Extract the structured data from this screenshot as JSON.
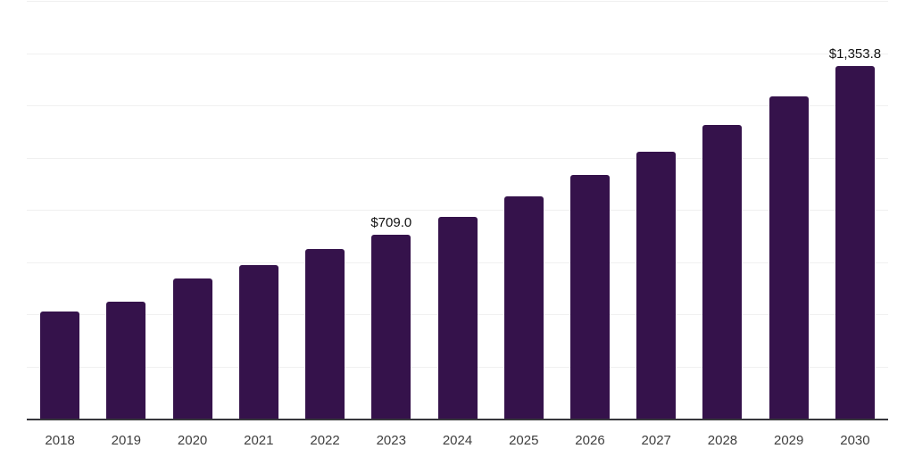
{
  "chart_data": {
    "type": "bar",
    "title": "",
    "xlabel": "",
    "ylabel": "",
    "categories": [
      "2018",
      "2019",
      "2020",
      "2021",
      "2022",
      "2023",
      "2024",
      "2025",
      "2026",
      "2027",
      "2028",
      "2029",
      "2030"
    ],
    "values": [
      413,
      452,
      539,
      592,
      652,
      709.0,
      777,
      854,
      937,
      1026,
      1127,
      1237,
      1353.8
    ],
    "bar_labels": [
      "",
      "",
      "",
      "",
      "",
      "$709.0",
      "",
      "",
      "",
      "",
      "",
      "",
      "$1,353.8"
    ],
    "ylim": [
      0,
      1600
    ],
    "gridline_step": 200,
    "grid": true,
    "legend": false,
    "y_tick_labels_visible": false
  },
  "colors": {
    "bar": "#35124B",
    "axis": "#37373C",
    "gridline": "#F0F0F0",
    "value_label": "#111111",
    "tick_label": "#3F3F3F",
    "background": "#FFFFFF"
  }
}
